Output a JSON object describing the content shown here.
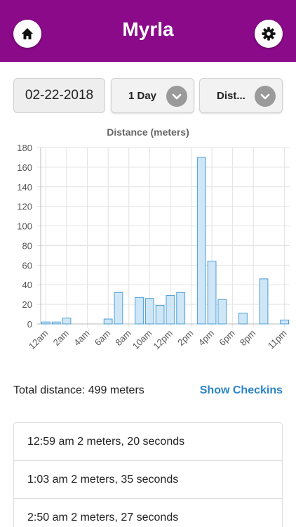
{
  "header": {
    "title": "Myrla",
    "bg_color": "#8a0a8a",
    "home_icon": "home-icon",
    "settings_icon": "gear-icon"
  },
  "controls": {
    "date_value": "02-22-2018",
    "range_select": {
      "label": "1 Day",
      "icon": "chevron-down-icon"
    },
    "metric_select": {
      "label": "Dist...",
      "icon": "chevron-down-icon"
    }
  },
  "chart_data": {
    "type": "bar",
    "title": "Distance (meters)",
    "xlabel": "",
    "ylabel": "",
    "ylim": [
      0,
      180
    ],
    "yticks": [
      0,
      20,
      40,
      60,
      80,
      100,
      120,
      140,
      160,
      180
    ],
    "grid": true,
    "bar_fill": "#cfe6f7",
    "bar_stroke": "#4a9fd8",
    "hours": [
      "12am",
      "1am",
      "2am",
      "3am",
      "4am",
      "5am",
      "6am",
      "7am",
      "8am",
      "9am",
      "10am",
      "11am",
      "12pm",
      "1pm",
      "2pm",
      "3pm",
      "4pm",
      "5pm",
      "6pm",
      "7pm",
      "8pm",
      "9pm",
      "10pm",
      "11pm"
    ],
    "tick_labels": [
      "12am",
      "2am",
      "4am",
      "6am",
      "8am",
      "10am",
      "12pm",
      "2pm",
      "4pm",
      "6pm",
      "8pm",
      "11pm"
    ],
    "values": [
      2,
      2,
      6,
      0,
      0,
      0,
      5,
      32,
      0,
      27,
      26,
      19,
      29,
      32,
      0,
      170,
      64,
      25,
      0,
      11,
      0,
      46,
      0,
      4
    ]
  },
  "summary": {
    "total_label": "Total distance: 499 meters",
    "show_link": "Show Checkins",
    "link_color": "#2b84c6"
  },
  "checkins": [
    {
      "text": "12:59 am 2 meters, 20 seconds"
    },
    {
      "text": "1:03 am 2 meters, 35 seconds"
    },
    {
      "text": "2:50 am 2 meters, 27 seconds"
    }
  ]
}
